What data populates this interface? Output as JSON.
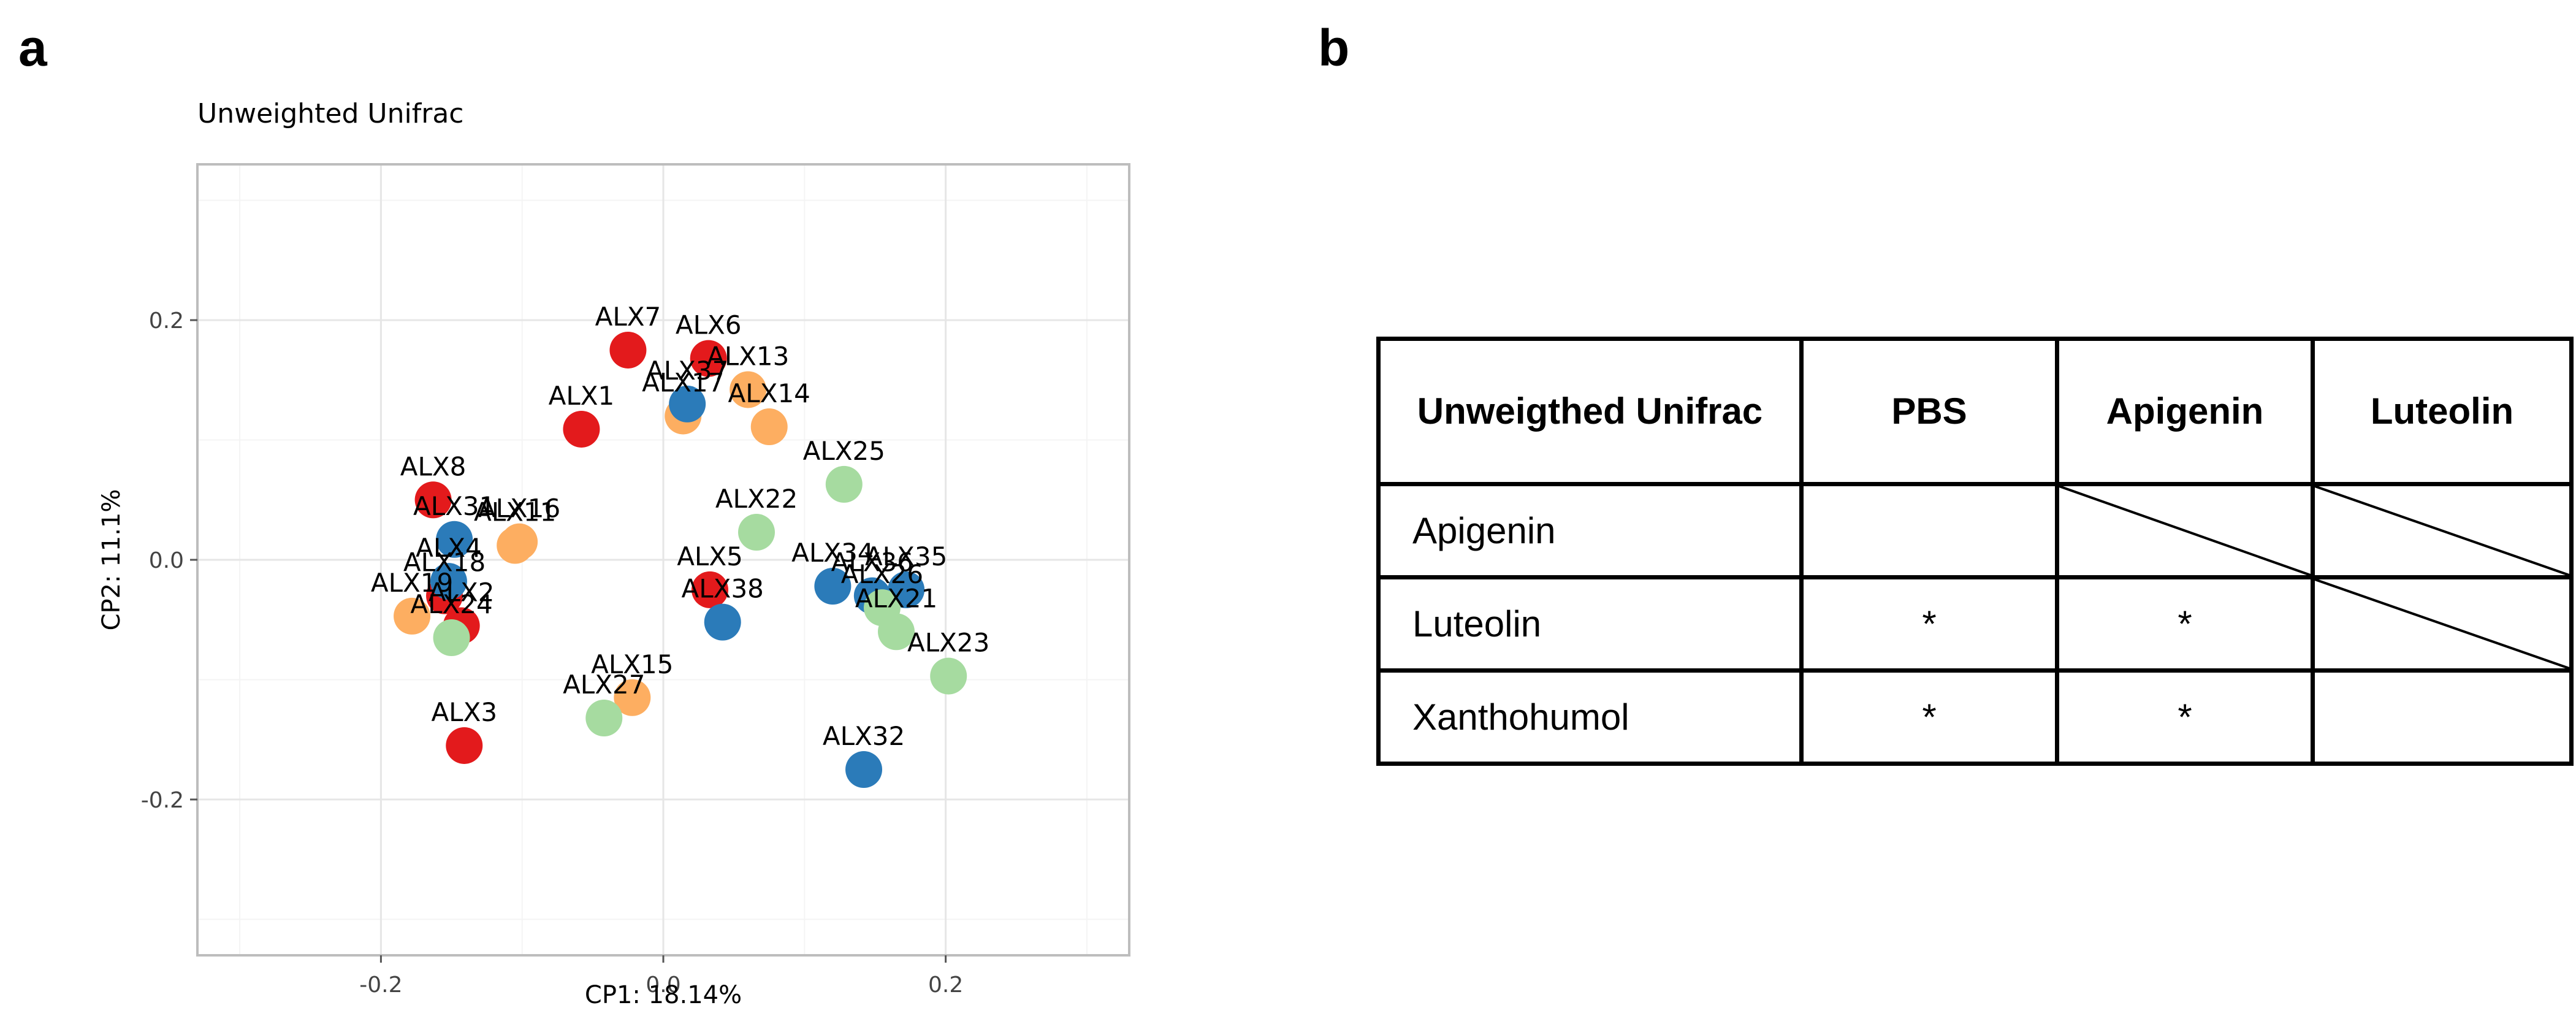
{
  "panel_a_label": "a",
  "panel_b_label": "b",
  "chart_data": {
    "type": "scatter",
    "title": "Unweighted Unifrac",
    "xlabel": "CP1: 18.14%",
    "ylabel": "CP2: 11.1%",
    "xlim": [
      -0.33,
      0.33
    ],
    "ylim": [
      -0.33,
      0.33
    ],
    "xticks": [
      -0.2,
      0.0,
      0.2
    ],
    "xtick_labels": [
      "-0.2",
      "0.0",
      "0.2"
    ],
    "yticks": [
      -0.2,
      0.0,
      0.2
    ],
    "ytick_labels": [
      "-0.2",
      "0.0",
      "0.2"
    ],
    "grid": true,
    "colors": {
      "red": "#e31a1c",
      "orange": "#fdae61",
      "blue": "#2b7bb9",
      "green": "#a6dba0"
    },
    "points": [
      {
        "label": "ALX7",
        "x": -0.025,
        "y": 0.175,
        "color": "#e31a1c"
      },
      {
        "label": "ALX6",
        "x": 0.032,
        "y": 0.168,
        "color": "#e31a1c"
      },
      {
        "label": "ALX1",
        "x": -0.058,
        "y": 0.109,
        "color": "#e31a1c"
      },
      {
        "label": "ALX8",
        "x": -0.163,
        "y": 0.05,
        "color": "#e31a1c"
      },
      {
        "label": "ALX5",
        "x": 0.033,
        "y": -0.025,
        "color": "#e31a1c"
      },
      {
        "label": "ALX3",
        "x": -0.141,
        "y": -0.155,
        "color": "#e31a1c"
      },
      {
        "label": "ALX18",
        "x": -0.155,
        "y": -0.03,
        "color": "#e31a1c"
      },
      {
        "label": "ALX2",
        "x": -0.143,
        "y": -0.055,
        "color": "#e31a1c"
      },
      {
        "label": "ALX13",
        "x": 0.06,
        "y": 0.142,
        "color": "#fdae61"
      },
      {
        "label": "ALX14",
        "x": 0.075,
        "y": 0.111,
        "color": "#fdae61"
      },
      {
        "label": "ALX17",
        "x": 0.014,
        "y": 0.12,
        "color": "#fdae61"
      },
      {
        "label": "ALX16",
        "x": -0.102,
        "y": 0.015,
        "color": "#fdae61"
      },
      {
        "label": "ALX19",
        "x": -0.178,
        "y": -0.047,
        "color": "#fdae61"
      },
      {
        "label": "ALX15",
        "x": -0.022,
        "y": -0.115,
        "color": "#fdae61"
      },
      {
        "label": "ALX37",
        "x": 0.017,
        "y": 0.13,
        "color": "#2b7bb9"
      },
      {
        "label": "ALX31",
        "x": -0.148,
        "y": 0.017,
        "color": "#2b7bb9"
      },
      {
        "label": "ALX4",
        "x": -0.152,
        "y": -0.018,
        "color": "#2b7bb9"
      },
      {
        "label": "ALX34",
        "x": 0.12,
        "y": -0.022,
        "color": "#2b7bb9"
      },
      {
        "label": "ALX36",
        "x": 0.148,
        "y": -0.03,
        "color": "#2b7bb9"
      },
      {
        "label": "ALX35",
        "x": 0.172,
        "y": -0.025,
        "color": "#2b7bb9"
      },
      {
        "label": "ALX38",
        "x": 0.042,
        "y": -0.052,
        "color": "#2b7bb9"
      },
      {
        "label": "ALX32",
        "x": 0.142,
        "y": -0.175,
        "color": "#2b7bb9"
      },
      {
        "label": "ALX25",
        "x": 0.128,
        "y": 0.063,
        "color": "#a6dba0"
      },
      {
        "label": "ALX22",
        "x": 0.066,
        "y": 0.023,
        "color": "#a6dba0"
      },
      {
        "label": "ALX21",
        "x": 0.165,
        "y": -0.06,
        "color": "#a6dba0"
      },
      {
        "label": "ALX23",
        "x": 0.202,
        "y": -0.097,
        "color": "#a6dba0"
      },
      {
        "label": "ALX24",
        "x": -0.15,
        "y": -0.065,
        "color": "#a6dba0"
      },
      {
        "label": "ALX27",
        "x": -0.042,
        "y": -0.132,
        "color": "#a6dba0"
      },
      {
        "label": "ALX26",
        "x": 0.155,
        "y": -0.04,
        "color": "#a6dba0"
      },
      {
        "label": "ALX11",
        "x": -0.105,
        "y": 0.012,
        "color": "#fdae61"
      }
    ]
  },
  "table": {
    "header": [
      "Unweigthed Unifrac",
      "PBS",
      "Apigenin",
      "Luteolin"
    ],
    "rows": [
      {
        "label": "Apigenin",
        "cells": [
          "",
          "",
          ""
        ]
      },
      {
        "label": "Luteolin",
        "cells": [
          "*",
          "*",
          ""
        ]
      },
      {
        "label": "Xanthohumol",
        "cells": [
          "*",
          "*",
          ""
        ]
      }
    ]
  }
}
